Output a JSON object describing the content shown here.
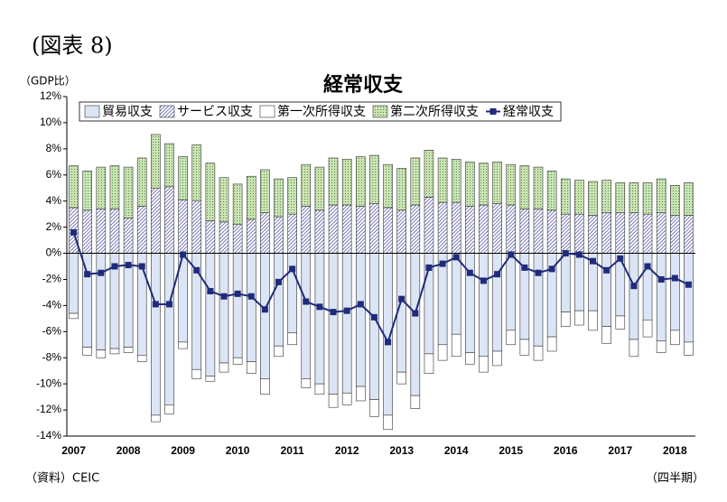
{
  "chart_data": {
    "type": "bar",
    "figure_label": "(図表 8)",
    "title": "経常収支",
    "y_label": "（GDP比）",
    "source": "（資料）CEIC",
    "x_label": "（四半期）",
    "stacked": true,
    "grid": false,
    "legend": "top",
    "categories": [
      "2007",
      null,
      null,
      null,
      "2008",
      null,
      null,
      null,
      "2009",
      null,
      null,
      null,
      "2010",
      null,
      null,
      null,
      "2011",
      null,
      null,
      null,
      "2012",
      null,
      null,
      null,
      "2013",
      null,
      null,
      null,
      "2014",
      null,
      null,
      null,
      "2015",
      null,
      null,
      null,
      "2016",
      null,
      null,
      null,
      "2017",
      null,
      null,
      null,
      "2018",
      null
    ],
    "ylim": [
      -14,
      12
    ],
    "yticks": [
      {
        "value": -14,
        "label": "-14%"
      },
      {
        "value": -12,
        "label": "-12%"
      },
      {
        "value": -10,
        "label": "-10%"
      },
      {
        "value": -8,
        "label": "-8%"
      },
      {
        "value": -6,
        "label": "-6%"
      },
      {
        "value": -4,
        "label": "-4%"
      },
      {
        "value": -2,
        "label": "-2%"
      },
      {
        "value": 0,
        "label": "0%"
      },
      {
        "value": 2,
        "label": "2%"
      },
      {
        "value": 4,
        "label": "4%"
      },
      {
        "value": 6,
        "label": "6%"
      },
      {
        "value": 8,
        "label": "8%"
      },
      {
        "value": 10,
        "label": "10%"
      },
      {
        "value": 12,
        "label": "12%"
      }
    ],
    "series": [
      {
        "name": "貿易収支",
        "type": "bar",
        "color": "#dbe5f5",
        "pattern": "solid",
        "values": [
          -4.6,
          -7.2,
          -7.4,
          -7.3,
          -7.2,
          -7.8,
          -12.4,
          -11.6,
          -6.8,
          -8.9,
          -9.4,
          -8.4,
          -8.0,
          -8.3,
          -9.6,
          -7.1,
          -6.1,
          -9.6,
          -10.0,
          -10.8,
          -10.7,
          -10.2,
          -11.2,
          -12.4,
          -9.1,
          -10.9,
          -7.7,
          -7.0,
          -6.2,
          -7.6,
          -7.9,
          -7.5,
          -5.9,
          -6.6,
          -7.1,
          -6.4,
          -4.5,
          -4.4,
          -4.4,
          -5.6,
          -4.8,
          -6.6,
          -5.1,
          -6.7,
          -5.9,
          -6.8
        ]
      },
      {
        "name": "サービス収支",
        "type": "bar",
        "color": "#6b6bb5",
        "pattern": "hatch",
        "values": [
          3.5,
          3.3,
          3.4,
          3.4,
          2.7,
          3.6,
          5.0,
          5.1,
          4.1,
          4.0,
          2.5,
          2.4,
          2.2,
          2.6,
          3.1,
          2.8,
          3.0,
          3.6,
          3.3,
          3.7,
          3.7,
          3.6,
          3.8,
          3.5,
          3.3,
          3.7,
          4.3,
          3.9,
          3.9,
          3.6,
          3.7,
          3.8,
          3.7,
          3.4,
          3.4,
          3.3,
          3.0,
          3.0,
          2.9,
          3.1,
          3.1,
          3.1,
          3.0,
          3.1,
          2.9,
          2.9
        ]
      },
      {
        "name": "第一次所得収支",
        "type": "bar",
        "color": "#ffffff",
        "pattern": "solid",
        "values": [
          -0.4,
          -0.6,
          -0.6,
          -0.4,
          -0.4,
          -0.5,
          -0.5,
          -0.7,
          -0.5,
          -0.7,
          -0.4,
          -0.7,
          -0.5,
          -0.9,
          -1.2,
          -0.8,
          -0.9,
          -0.7,
          -0.8,
          -1.0,
          -0.9,
          -1.1,
          -1.3,
          -1.1,
          -0.9,
          -1.0,
          -1.5,
          -1.2,
          -1.7,
          -0.9,
          -1.2,
          -1.1,
          -1.1,
          -1.2,
          -1.1,
          -1.1,
          -1.1,
          -1.1,
          -1.5,
          -1.3,
          -1.0,
          -1.3,
          -1.3,
          -0.9,
          -1.1,
          -1.0
        ]
      },
      {
        "name": "第二次所得収支",
        "type": "bar",
        "color": "#c9e3b5",
        "pattern": "dots",
        "values": [
          3.2,
          3.0,
          3.2,
          3.3,
          3.9,
          3.7,
          4.1,
          3.3,
          3.3,
          4.3,
          4.4,
          3.4,
          3.1,
          3.3,
          3.3,
          2.9,
          2.8,
          3.2,
          3.3,
          3.6,
          3.5,
          3.8,
          3.7,
          3.3,
          3.2,
          3.6,
          3.6,
          3.4,
          3.3,
          3.4,
          3.2,
          3.2,
          3.1,
          3.3,
          3.2,
          3.0,
          2.7,
          2.6,
          2.6,
          2.5,
          2.3,
          2.3,
          2.4,
          2.6,
          2.3,
          2.5
        ]
      },
      {
        "name": "経常収支",
        "type": "line",
        "color": "#1f2b7a",
        "values": [
          1.6,
          -1.6,
          -1.5,
          -1.0,
          -0.9,
          -1.0,
          -3.9,
          -3.9,
          -0.1,
          -1.3,
          -2.9,
          -3.3,
          -3.1,
          -3.3,
          -4.3,
          -2.2,
          -1.2,
          -3.7,
          -4.1,
          -4.5,
          -4.4,
          -3.9,
          -4.9,
          -6.8,
          -3.5,
          -4.6,
          -1.1,
          -0.8,
          -0.3,
          -1.5,
          -2.1,
          -1.6,
          -0.1,
          -1.1,
          -1.5,
          -1.2,
          0.0,
          -0.1,
          -0.6,
          -1.3,
          -0.4,
          -2.5,
          -1.0,
          -2.0,
          -1.9,
          -2.4
        ]
      }
    ]
  }
}
